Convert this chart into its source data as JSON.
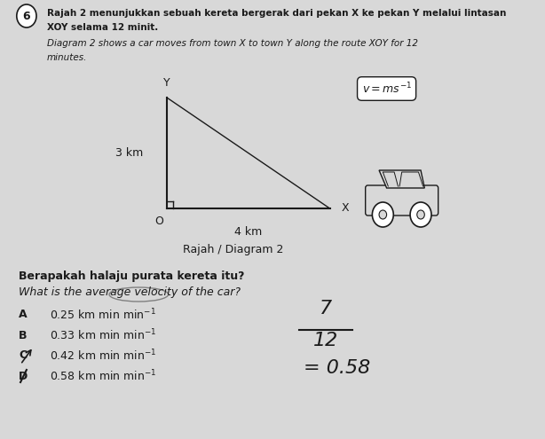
{
  "bg_color": "#d8d8d8",
  "paper_color": "#e8e6e0",
  "question_number": "6",
  "text_line1": "Rajah 2 menunjukkan sebuah kereta bergerak dari pekan X ke pekan Y melalui lintasan",
  "text_line2": "XOY selama 12 minit.",
  "text_line3_italic": "Diagram 2 shows a car moves from town X to town Y along the route XOY for 12",
  "text_line4_italic": "minutes.",
  "diagram_title": "Rajah / Diagram 2",
  "label_O": "O",
  "label_X": "X",
  "label_Y": "Y",
  "label_3km": "3 km",
  "label_4km": "4 km",
  "question_bold": "Berapakah halaju purata kereta itu?",
  "question_italic": "What is the average velocity of the car?",
  "handwritten_fraction_num": "7",
  "handwritten_fraction_den": "12",
  "handwritten_result": "= 0.58",
  "font_color": "#1a1a1a",
  "opt_A_letter": "A",
  "opt_A_text": "0.25 km min",
  "opt_B_letter": "B",
  "opt_B_text": "0.33 km min",
  "opt_C_letter": "C",
  "opt_C_text": "0.42 km min",
  "opt_D_letter": "D",
  "opt_D_text": "0.58 km min"
}
